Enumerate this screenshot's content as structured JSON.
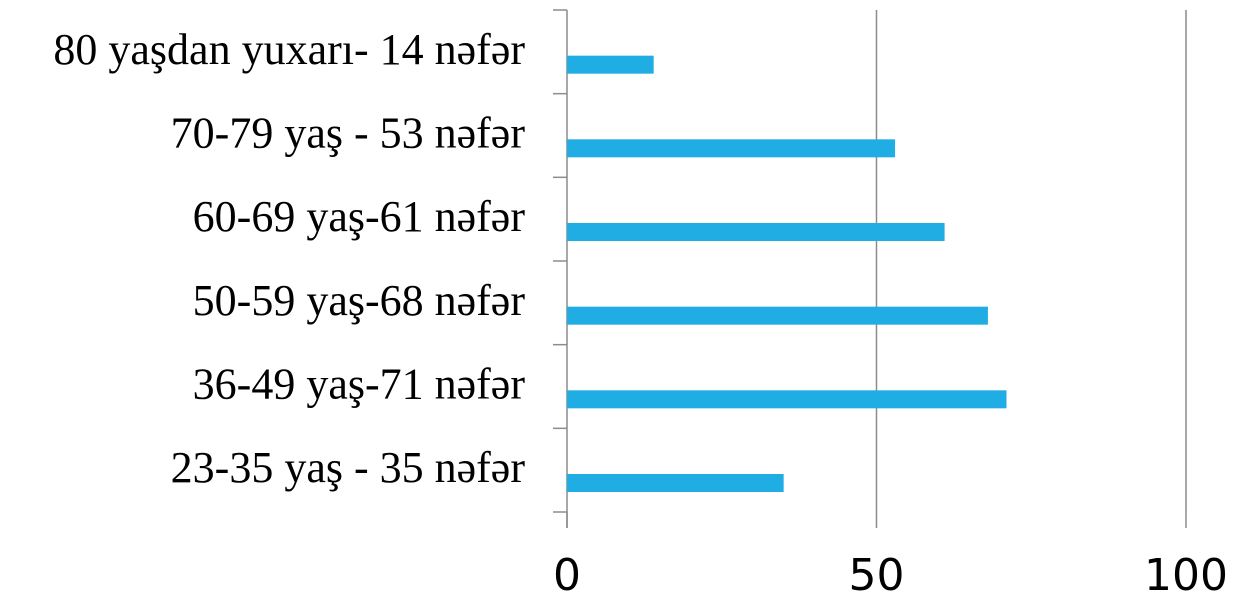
{
  "chart_data": {
    "type": "bar",
    "orientation": "horizontal",
    "categories": [
      "23-35 yaş - 35 nəfər",
      "36-49 yaş-71 nəfər",
      "50-59 yaş-68 nəfər",
      "60-69 yaş-61 nəfər",
      "70-79 yaş - 53 nəfər",
      "80 yaşdan yuxarı- 14 nəfər"
    ],
    "values": [
      35,
      71,
      68,
      61,
      53,
      14
    ],
    "xlim": [
      0,
      100
    ],
    "xticks": [
      "0",
      "50",
      "100"
    ],
    "grid": true,
    "bar_color": "#1fade4"
  }
}
